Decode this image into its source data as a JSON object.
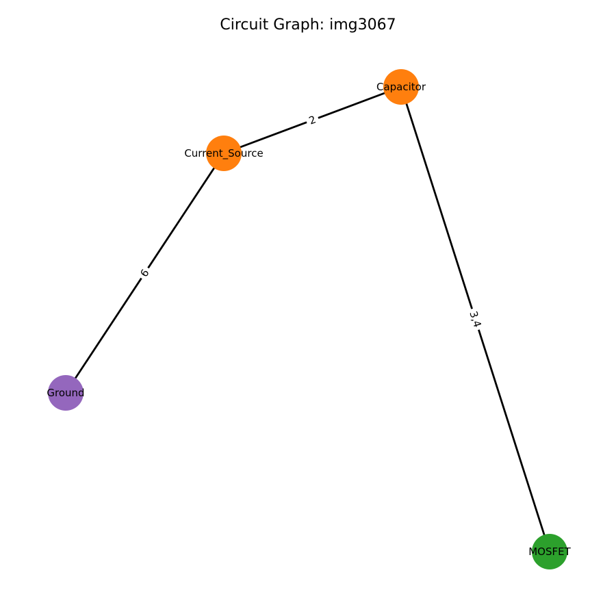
{
  "title": "Circuit Graph: img3067",
  "nodes": [
    {
      "id": "capacitor",
      "label": "Capacitor",
      "color": "#ff7f0e"
    },
    {
      "id": "current_source",
      "label": "Current_Source",
      "color": "#ff7f0e"
    },
    {
      "id": "ground",
      "label": "Ground",
      "color": "#9467bd"
    },
    {
      "id": "mosfet",
      "label": "MOSFET",
      "color": "#2ca02c"
    }
  ],
  "edges": [
    {
      "source": "current_source",
      "target": "capacitor",
      "label": "2"
    },
    {
      "source": "current_source",
      "target": "ground",
      "label": "6"
    },
    {
      "source": "capacitor",
      "target": "mosfet",
      "label": "3,4"
    }
  ],
  "colors": {
    "edge": "#000000",
    "background": "#ffffff"
  }
}
